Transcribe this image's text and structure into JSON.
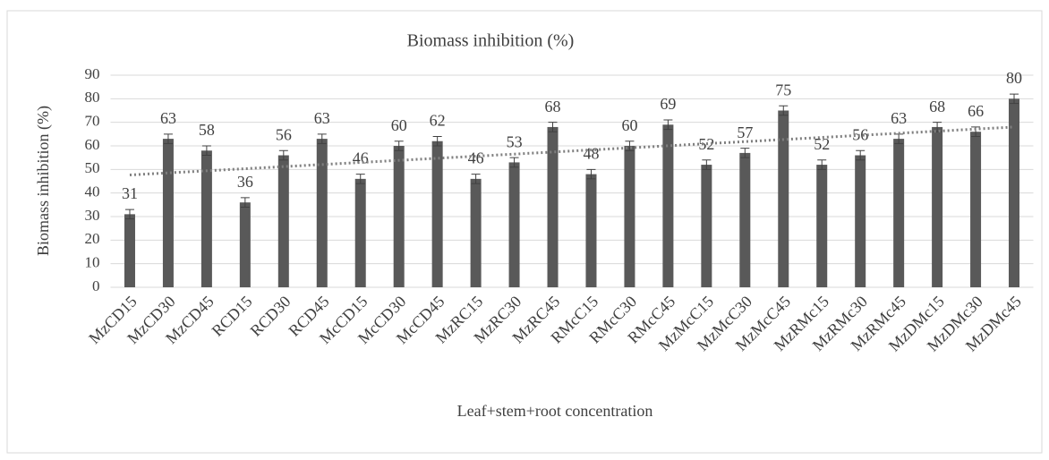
{
  "chart_data": {
    "type": "bar",
    "title": "Biomass inhibition (%)",
    "x_label": "Leaf+stem+root concentration",
    "y_label": "Biomass inhibition (%)",
    "categories": [
      "MzCD15",
      "MzCD30",
      "MzCD45",
      "RCD15",
      "RCD30",
      "RCD45",
      "McCD15",
      "McCD30",
      "McCD45",
      "MzRC15",
      "MzRC30",
      "MzRC45",
      "RMcC15",
      "RMcC30",
      "RMcC45",
      "MzMcC15",
      "MzMcC30",
      "MzMcC45",
      "MzRMc15",
      "MzRMc30",
      "MzRMc45",
      "MzDMc15",
      "MzDMc30",
      "MzDMc45"
    ],
    "values": [
      31,
      63,
      58,
      36,
      56,
      63,
      46,
      60,
      62,
      46,
      53,
      68,
      48,
      60,
      69,
      52,
      57,
      75,
      52,
      56,
      63,
      68,
      66,
      80
    ],
    "errors": [
      2,
      2,
      2,
      2,
      2,
      2,
      2,
      2,
      2,
      2,
      2,
      2,
      2,
      2,
      2,
      2,
      2,
      2,
      2,
      2,
      2,
      2,
      2,
      2
    ],
    "color": "#595959",
    "trendline": true,
    "ylim": [
      0,
      90
    ],
    "yticks": [
      0,
      10,
      20,
      30,
      40,
      50,
      60,
      70,
      80,
      90
    ],
    "grid": true
  }
}
